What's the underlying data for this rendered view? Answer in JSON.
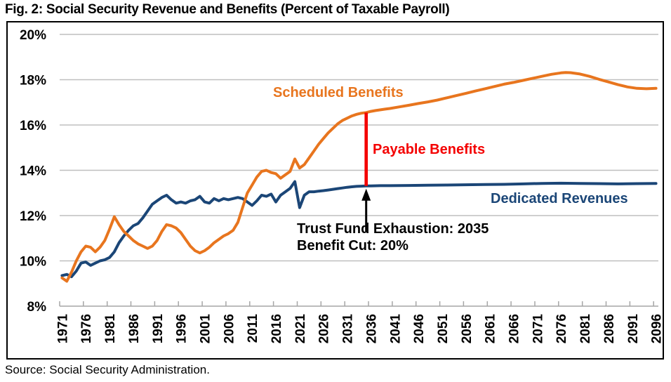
{
  "figure": {
    "title": "Fig. 2: Social Security Revenue and Benefits (Percent of Taxable Payroll)",
    "source": "Source: Social Security Administration."
  },
  "chart_data": {
    "type": "line",
    "title": "Social Security Revenue and Benefits (Percent of Taxable Payroll)",
    "grid": true,
    "grid_color": "#BFBFBF",
    "axis_color": "#A6A6A6",
    "x_axis": {
      "range": [
        1971,
        2096
      ],
      "ticks": [
        1971,
        1976,
        1981,
        1986,
        1991,
        1996,
        2001,
        2006,
        2011,
        2016,
        2021,
        2026,
        2031,
        2036,
        2041,
        2046,
        2051,
        2056,
        2061,
        2066,
        2071,
        2076,
        2081,
        2086,
        2091,
        2096
      ]
    },
    "y_axis": {
      "range": [
        8,
        20
      ],
      "unit": "%",
      "tick_values": [
        8,
        10,
        12,
        14,
        16,
        18,
        20
      ],
      "tick_labels": [
        "8%",
        "10%",
        "12%",
        "14%",
        "16%",
        "18%",
        "20%"
      ]
    },
    "series": [
      {
        "name": "Scheduled Benefits",
        "color": "#E8751E",
        "points": [
          [
            1971,
            9.25
          ],
          [
            1972,
            9.1
          ],
          [
            1973,
            9.5
          ],
          [
            1974,
            10.0
          ],
          [
            1975,
            10.4
          ],
          [
            1976,
            10.65
          ],
          [
            1977,
            10.6
          ],
          [
            1978,
            10.4
          ],
          [
            1979,
            10.6
          ],
          [
            1980,
            10.9
          ],
          [
            1981,
            11.4
          ],
          [
            1982,
            11.95
          ],
          [
            1983,
            11.6
          ],
          [
            1984,
            11.3
          ],
          [
            1985,
            11.1
          ],
          [
            1986,
            10.9
          ],
          [
            1987,
            10.75
          ],
          [
            1988,
            10.65
          ],
          [
            1989,
            10.55
          ],
          [
            1990,
            10.65
          ],
          [
            1991,
            10.9
          ],
          [
            1992,
            11.3
          ],
          [
            1993,
            11.6
          ],
          [
            1994,
            11.55
          ],
          [
            1995,
            11.45
          ],
          [
            1996,
            11.25
          ],
          [
            1997,
            10.95
          ],
          [
            1998,
            10.65
          ],
          [
            1999,
            10.45
          ],
          [
            2000,
            10.35
          ],
          [
            2001,
            10.45
          ],
          [
            2002,
            10.6
          ],
          [
            2003,
            10.8
          ],
          [
            2004,
            10.95
          ],
          [
            2005,
            11.1
          ],
          [
            2006,
            11.2
          ],
          [
            2007,
            11.35
          ],
          [
            2008,
            11.7
          ],
          [
            2009,
            12.35
          ],
          [
            2010,
            13.0
          ],
          [
            2011,
            13.35
          ],
          [
            2012,
            13.7
          ],
          [
            2013,
            13.95
          ],
          [
            2014,
            14.0
          ],
          [
            2015,
            13.9
          ],
          [
            2016,
            13.85
          ],
          [
            2017,
            13.65
          ],
          [
            2018,
            13.8
          ],
          [
            2019,
            13.95
          ],
          [
            2020,
            14.5
          ],
          [
            2021,
            14.1
          ],
          [
            2022,
            14.25
          ],
          [
            2023,
            14.55
          ],
          [
            2024,
            14.85
          ],
          [
            2025,
            15.15
          ],
          [
            2026,
            15.4
          ],
          [
            2027,
            15.65
          ],
          [
            2028,
            15.85
          ],
          [
            2029,
            16.05
          ],
          [
            2030,
            16.2
          ],
          [
            2031,
            16.3
          ],
          [
            2032,
            16.4
          ],
          [
            2033,
            16.47
          ],
          [
            2034,
            16.52
          ],
          [
            2035,
            16.55
          ],
          [
            2036,
            16.6
          ],
          [
            2037,
            16.64
          ],
          [
            2038,
            16.67
          ],
          [
            2039,
            16.7
          ],
          [
            2040,
            16.73
          ],
          [
            2042,
            16.8
          ],
          [
            2044,
            16.87
          ],
          [
            2046,
            16.95
          ],
          [
            2048,
            17.02
          ],
          [
            2050,
            17.1
          ],
          [
            2052,
            17.2
          ],
          [
            2054,
            17.3
          ],
          [
            2056,
            17.4
          ],
          [
            2058,
            17.5
          ],
          [
            2060,
            17.6
          ],
          [
            2062,
            17.7
          ],
          [
            2064,
            17.8
          ],
          [
            2066,
            17.88
          ],
          [
            2068,
            17.97
          ],
          [
            2070,
            18.06
          ],
          [
            2072,
            18.15
          ],
          [
            2074,
            18.24
          ],
          [
            2076,
            18.3
          ],
          [
            2077,
            18.32
          ],
          [
            2078,
            18.31
          ],
          [
            2080,
            18.25
          ],
          [
            2082,
            18.15
          ],
          [
            2084,
            18.02
          ],
          [
            2086,
            17.9
          ],
          [
            2088,
            17.78
          ],
          [
            2090,
            17.68
          ],
          [
            2092,
            17.62
          ],
          [
            2094,
            17.6
          ],
          [
            2096,
            17.62
          ]
        ]
      },
      {
        "name": "Dedicated Revenues",
        "color": "#1B4677",
        "points": [
          [
            1971,
            9.35
          ],
          [
            1972,
            9.4
          ],
          [
            1973,
            9.3
          ],
          [
            1974,
            9.55
          ],
          [
            1975,
            9.9
          ],
          [
            1976,
            9.95
          ],
          [
            1977,
            9.8
          ],
          [
            1978,
            9.9
          ],
          [
            1979,
            10.0
          ],
          [
            1980,
            10.05
          ],
          [
            1981,
            10.15
          ],
          [
            1982,
            10.4
          ],
          [
            1983,
            10.8
          ],
          [
            1984,
            11.1
          ],
          [
            1985,
            11.35
          ],
          [
            1986,
            11.55
          ],
          [
            1987,
            11.65
          ],
          [
            1988,
            11.9
          ],
          [
            1989,
            12.2
          ],
          [
            1990,
            12.5
          ],
          [
            1991,
            12.65
          ],
          [
            1992,
            12.8
          ],
          [
            1993,
            12.9
          ],
          [
            1994,
            12.7
          ],
          [
            1995,
            12.55
          ],
          [
            1996,
            12.6
          ],
          [
            1997,
            12.55
          ],
          [
            1998,
            12.65
          ],
          [
            1999,
            12.7
          ],
          [
            2000,
            12.85
          ],
          [
            2001,
            12.6
          ],
          [
            2002,
            12.55
          ],
          [
            2003,
            12.75
          ],
          [
            2004,
            12.65
          ],
          [
            2005,
            12.75
          ],
          [
            2006,
            12.7
          ],
          [
            2007,
            12.75
          ],
          [
            2008,
            12.8
          ],
          [
            2009,
            12.75
          ],
          [
            2010,
            12.6
          ],
          [
            2011,
            12.45
          ],
          [
            2012,
            12.65
          ],
          [
            2013,
            12.9
          ],
          [
            2014,
            12.85
          ],
          [
            2015,
            12.95
          ],
          [
            2016,
            12.6
          ],
          [
            2017,
            12.9
          ],
          [
            2018,
            13.05
          ],
          [
            2019,
            13.2
          ],
          [
            2020,
            13.5
          ],
          [
            2021,
            12.35
          ],
          [
            2022,
            12.9
          ],
          [
            2023,
            13.05
          ],
          [
            2024,
            13.05
          ],
          [
            2025,
            13.08
          ],
          [
            2026,
            13.1
          ],
          [
            2027,
            13.13
          ],
          [
            2028,
            13.16
          ],
          [
            2029,
            13.19
          ],
          [
            2030,
            13.22
          ],
          [
            2031,
            13.25
          ],
          [
            2032,
            13.27
          ],
          [
            2033,
            13.29
          ],
          [
            2034,
            13.3
          ],
          [
            2035,
            13.31
          ],
          [
            2036,
            13.31
          ],
          [
            2038,
            13.32
          ],
          [
            2040,
            13.32
          ],
          [
            2044,
            13.33
          ],
          [
            2048,
            13.34
          ],
          [
            2052,
            13.35
          ],
          [
            2056,
            13.36
          ],
          [
            2060,
            13.37
          ],
          [
            2064,
            13.38
          ],
          [
            2068,
            13.4
          ],
          [
            2072,
            13.42
          ],
          [
            2076,
            13.43
          ],
          [
            2080,
            13.42
          ],
          [
            2084,
            13.41
          ],
          [
            2088,
            13.4
          ],
          [
            2092,
            13.41
          ],
          [
            2096,
            13.42
          ]
        ]
      }
    ],
    "annotations": {
      "scheduled_benefits_label": "Scheduled Benefits",
      "payable_benefits_label": "Payable Benefits",
      "dedicated_revenues_label": "Dedicated Revenues",
      "trust_fund_line1": "Trust Fund Exhaustion: 2035",
      "trust_fund_line2": "Benefit Cut: 20%",
      "marker": {
        "year": 2035,
        "value_top": 16.55,
        "value_bottom": 13.31,
        "color": "#F40000"
      },
      "arrow_color": "#000000"
    }
  }
}
